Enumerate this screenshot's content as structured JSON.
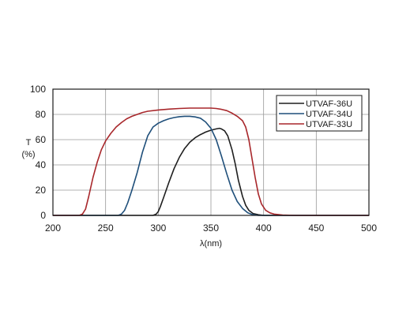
{
  "chart_data": {
    "type": "line",
    "title": "",
    "xlabel": "λ(nm)",
    "ylabel": [
      "T",
      "(%)"
    ],
    "xlim": [
      200,
      500
    ],
    "ylim": [
      0,
      100
    ],
    "x_ticks": [
      200,
      250,
      300,
      350,
      400,
      450,
      500
    ],
    "y_ticks": [
      0,
      20,
      40,
      60,
      80,
      100
    ],
    "grid": true,
    "legend_position": "top-right",
    "series": [
      {
        "name": "UTVAF-36U",
        "color": "#1f1f1f",
        "points": [
          [
            200,
            0
          ],
          [
            295,
            0
          ],
          [
            298,
            1
          ],
          [
            300,
            3
          ],
          [
            302,
            7
          ],
          [
            305,
            14
          ],
          [
            310,
            26
          ],
          [
            315,
            37
          ],
          [
            320,
            46
          ],
          [
            325,
            53
          ],
          [
            330,
            58
          ],
          [
            335,
            61.5
          ],
          [
            340,
            64
          ],
          [
            345,
            66
          ],
          [
            350,
            67.5
          ],
          [
            355,
            68.5
          ],
          [
            358,
            69
          ],
          [
            360,
            68.5
          ],
          [
            363,
            67
          ],
          [
            366,
            63
          ],
          [
            370,
            52
          ],
          [
            373,
            41
          ],
          [
            376,
            28
          ],
          [
            380,
            15
          ],
          [
            383,
            8
          ],
          [
            386,
            4
          ],
          [
            390,
            1.5
          ],
          [
            395,
            0.5
          ],
          [
            400,
            0
          ],
          [
            500,
            0
          ]
        ]
      },
      {
        "name": "UTVAF-34U",
        "color": "#1f4f7a",
        "points": [
          [
            200,
            0
          ],
          [
            262,
            0
          ],
          [
            265,
            1
          ],
          [
            268,
            4
          ],
          [
            271,
            10
          ],
          [
            275,
            20
          ],
          [
            280,
            34
          ],
          [
            285,
            50
          ],
          [
            290,
            63
          ],
          [
            295,
            70
          ],
          [
            300,
            73
          ],
          [
            305,
            75
          ],
          [
            310,
            76.5
          ],
          [
            315,
            77.5
          ],
          [
            320,
            78.2
          ],
          [
            325,
            78.5
          ],
          [
            330,
            78.5
          ],
          [
            335,
            78
          ],
          [
            340,
            77
          ],
          [
            345,
            74
          ],
          [
            350,
            69
          ],
          [
            355,
            60
          ],
          [
            360,
            47
          ],
          [
            365,
            33
          ],
          [
            370,
            20
          ],
          [
            375,
            11
          ],
          [
            380,
            5.5
          ],
          [
            385,
            2
          ],
          [
            390,
            0.5
          ],
          [
            395,
            0
          ],
          [
            500,
            0
          ]
        ]
      },
      {
        "name": "UTVAF-33U",
        "color": "#a8272b",
        "points": [
          [
            200,
            0
          ],
          [
            225,
            0
          ],
          [
            228,
            1
          ],
          [
            231,
            5
          ],
          [
            234,
            15
          ],
          [
            238,
            30
          ],
          [
            242,
            42
          ],
          [
            246,
            52
          ],
          [
            250,
            59
          ],
          [
            255,
            65
          ],
          [
            260,
            70
          ],
          [
            265,
            73.5
          ],
          [
            270,
            76.5
          ],
          [
            275,
            78.5
          ],
          [
            280,
            80
          ],
          [
            285,
            81.5
          ],
          [
            290,
            82.5
          ],
          [
            300,
            83.5
          ],
          [
            310,
            84.2
          ],
          [
            320,
            84.7
          ],
          [
            330,
            85
          ],
          [
            340,
            85
          ],
          [
            350,
            85
          ],
          [
            355,
            84.7
          ],
          [
            360,
            84
          ],
          [
            365,
            83
          ],
          [
            370,
            81
          ],
          [
            375,
            78.5
          ],
          [
            380,
            75
          ],
          [
            383,
            70
          ],
          [
            386,
            60
          ],
          [
            389,
            45
          ],
          [
            392,
            30
          ],
          [
            395,
            17
          ],
          [
            398,
            9
          ],
          [
            402,
            4
          ],
          [
            406,
            2
          ],
          [
            410,
            1
          ],
          [
            418,
            0.3
          ],
          [
            430,
            0
          ],
          [
            500,
            0
          ]
        ]
      }
    ]
  }
}
